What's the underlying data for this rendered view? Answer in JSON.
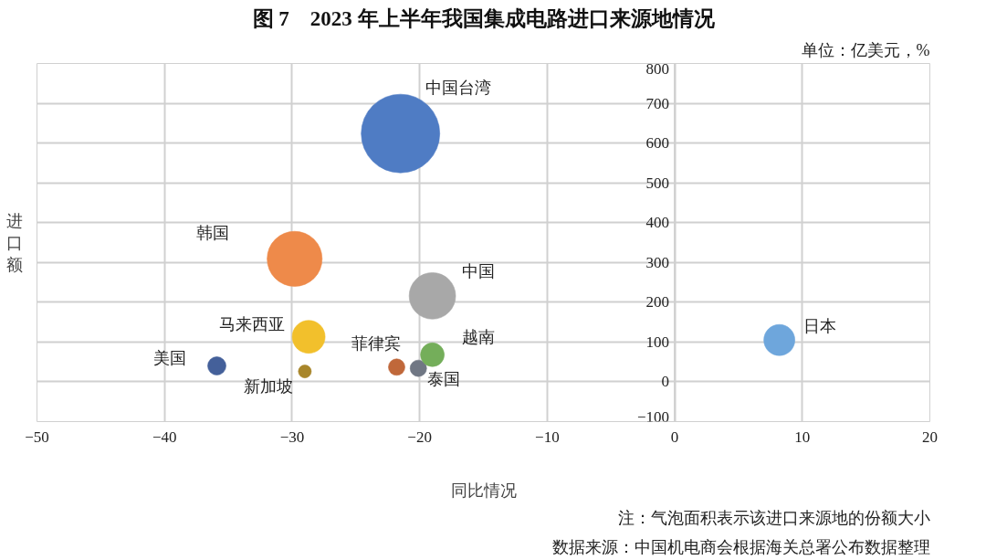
{
  "chart_data": {
    "type": "bubble",
    "title": "图 7　2023 年上半年我国集成电路进口来源地情况",
    "xlabel": "同比情况",
    "ylabel": "进口额",
    "annotations": [
      "单位：亿美元，%",
      "注：气泡面积表示该进口来源地的份额大小",
      "数据来源：中国机电商会根据海关总署公布数据整理"
    ],
    "xlim": [
      -50,
      20
    ],
    "xticks": [
      -50,
      -40,
      -30,
      -20,
      -10,
      0,
      10,
      20
    ],
    "ylim": [
      -100,
      800
    ],
    "yticks": [
      -100,
      0,
      100,
      200,
      300,
      400,
      500,
      600,
      700,
      800
    ],
    "grid": true,
    "legend": false,
    "series": [
      {
        "name": "中国台湾",
        "color": "#4f7cc4",
        "x": [
          -21.5
        ],
        "values": [
          624
        ],
        "sizes": [
          1
        ]
      },
      {
        "name": "韩国",
        "color": "#ee8a4a",
        "x": [
          -29.8
        ],
        "values": [
          309
        ],
        "sizes": [
          0.49
        ]
      },
      {
        "name": "中国",
        "color": "#a8a8a8",
        "x": [
          -19.0
        ],
        "values": [
          216
        ],
        "sizes": [
          0.35
        ]
      },
      {
        "name": "马来西亚",
        "color": "#f2c02c",
        "x": [
          -28.7
        ],
        "values": [
          113
        ],
        "sizes": [
          0.175
        ]
      },
      {
        "name": "美国",
        "color": "#44609a",
        "x": [
          -35.9
        ],
        "values": [
          40
        ],
        "sizes": [
          0.054
        ]
      },
      {
        "name": "新加坡",
        "color": "#a8862a",
        "x": [
          -29.0
        ],
        "values": [
          26
        ],
        "sizes": [
          0.027
        ]
      },
      {
        "name": "菲律宾",
        "color": "#c0683a",
        "x": [
          -21.8
        ],
        "values": [
          37
        ],
        "sizes": [
          0.044
        ]
      },
      {
        "name": "泰国",
        "color": "#707784",
        "x": [
          -20.1
        ],
        "values": [
          34
        ],
        "sizes": [
          0.044
        ]
      },
      {
        "name": "越南",
        "color": "#74ae5a",
        "x": [
          -19.0
        ],
        "values": [
          68
        ],
        "sizes": [
          0.091
        ]
      },
      {
        "name": "日本",
        "color": "#6ea6dc",
        "x": [
          8.2
        ],
        "values": [
          105
        ],
        "sizes": [
          0.156
        ]
      }
    ]
  }
}
